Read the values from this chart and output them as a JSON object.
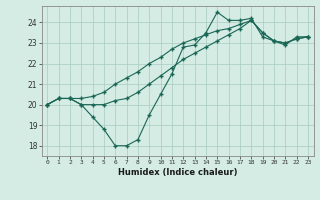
{
  "xlabel": "Humidex (Indice chaleur)",
  "ylabel": "",
  "bg_color": "#d4ece4",
  "grid_color": "#aaccc0",
  "line_color": "#1a6655",
  "marker_color": "#1a6655",
  "xlim": [
    -0.5,
    23.5
  ],
  "ylim": [
    17.5,
    24.8
  ],
  "xticks": [
    0,
    1,
    2,
    3,
    4,
    5,
    6,
    7,
    8,
    9,
    10,
    11,
    12,
    13,
    14,
    15,
    16,
    17,
    18,
    19,
    20,
    21,
    22,
    23
  ],
  "yticks": [
    18,
    19,
    20,
    21,
    22,
    23,
    24
  ],
  "lines": [
    [
      20.0,
      20.3,
      20.3,
      20.0,
      19.4,
      18.8,
      18.0,
      18.0,
      18.3,
      19.5,
      20.5,
      21.5,
      22.8,
      22.9,
      23.5,
      24.5,
      24.1,
      24.1,
      24.2,
      23.3,
      23.1,
      22.9,
      23.3,
      23.3
    ],
    [
      20.0,
      20.3,
      20.3,
      20.0,
      20.0,
      20.0,
      20.2,
      20.3,
      20.6,
      21.0,
      21.4,
      21.8,
      22.2,
      22.5,
      22.8,
      23.1,
      23.4,
      23.7,
      24.1,
      23.5,
      23.1,
      23.0,
      23.2,
      23.3
    ],
    [
      20.0,
      20.3,
      20.3,
      20.3,
      20.4,
      20.6,
      21.0,
      21.3,
      21.6,
      22.0,
      22.3,
      22.7,
      23.0,
      23.2,
      23.4,
      23.6,
      23.7,
      23.9,
      24.1,
      23.5,
      23.1,
      23.0,
      23.2,
      23.3
    ]
  ]
}
